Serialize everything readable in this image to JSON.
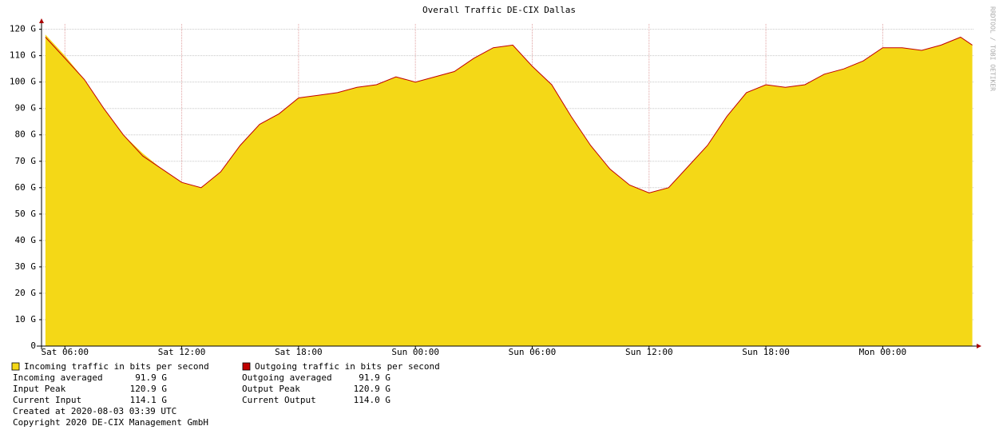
{
  "chart_data": {
    "type": "area",
    "title": "Overall Traffic DE-CIX Dallas",
    "watermark": "RRDTOOL / TOBI OETIKER",
    "x": [
      5,
      6,
      7,
      8,
      9,
      10,
      11,
      12,
      13,
      14,
      15,
      16,
      17,
      18,
      19,
      20,
      21,
      22,
      23,
      24,
      25,
      26,
      27,
      28,
      29,
      30,
      31,
      32,
      33,
      34,
      35,
      36,
      37,
      38,
      39,
      40,
      41,
      42,
      43,
      44,
      45,
      46,
      47,
      48,
      49,
      50,
      51,
      52,
      52.6
    ],
    "series": [
      {
        "name": "Incoming traffic in bits per second",
        "color": "#f4d817",
        "values": [
          118,
          110,
          101,
          90,
          80,
          73,
          67,
          62,
          60,
          66,
          76,
          84,
          88,
          94,
          95,
          96,
          98,
          99,
          102,
          100,
          102,
          104,
          109,
          113,
          114,
          106,
          99,
          87,
          76,
          67,
          61,
          58,
          60,
          68,
          76,
          87,
          96,
          99,
          98,
          99,
          103,
          105,
          108,
          113,
          113,
          112,
          114,
          117,
          114.1
        ]
      },
      {
        "name": "Outgoing traffic in bits per second",
        "color": "#c00000",
        "values": [
          117,
          109,
          101,
          90,
          80,
          72,
          67,
          62,
          60,
          66,
          76,
          84,
          88,
          94,
          95,
          96,
          98,
          99,
          102,
          100,
          102,
          104,
          109,
          113,
          114,
          106,
          99,
          87,
          76,
          67,
          61,
          58,
          60,
          68,
          76,
          87,
          96,
          99,
          98,
          99,
          103,
          105,
          108,
          113,
          113,
          112,
          114,
          117,
          114
        ]
      }
    ],
    "xlim": [
      4.8,
      52.7
    ],
    "xticks": [
      {
        "value": 6,
        "label": "Sat 06:00"
      },
      {
        "value": 12,
        "label": "Sat 12:00"
      },
      {
        "value": 18,
        "label": "Sat 18:00"
      },
      {
        "value": 24,
        "label": "Sun 00:00"
      },
      {
        "value": 30,
        "label": "Sun 06:00"
      },
      {
        "value": 36,
        "label": "Sun 12:00"
      },
      {
        "value": 42,
        "label": "Sun 18:00"
      },
      {
        "value": 48,
        "label": "Mon 00:00"
      }
    ],
    "ylim": [
      0,
      122
    ],
    "yticks": [
      0,
      {
        "value": 10,
        "label": "10 G"
      },
      {
        "value": 20,
        "label": "20 G"
      },
      {
        "value": 30,
        "label": "30 G"
      },
      {
        "value": 40,
        "label": "40 G"
      },
      {
        "value": 50,
        "label": "50 G"
      },
      {
        "value": 60,
        "label": "60 G"
      },
      {
        "value": 70,
        "label": "70 G"
      },
      {
        "value": 80,
        "label": "80 G"
      },
      {
        "value": 90,
        "label": "90 G"
      },
      {
        "value": 100,
        "label": "100 G"
      },
      {
        "value": 110,
        "label": "110 G"
      },
      {
        "value": 120,
        "label": "120 G"
      }
    ],
    "grid": true,
    "stats": [
      [
        "Incoming averaged",
        "91.9 G",
        "Outgoing averaged",
        "91.9 G"
      ],
      [
        "Input Peak",
        "120.9 G",
        "Output Peak",
        "120.9 G"
      ],
      [
        "Current Input",
        "114.1 G",
        "Current Output",
        "114.0 G"
      ]
    ],
    "notes": [
      "Created at 2020-08-03 03:39 UTC",
      "Copyright 2020 DE-CIX Management GmbH"
    ]
  }
}
